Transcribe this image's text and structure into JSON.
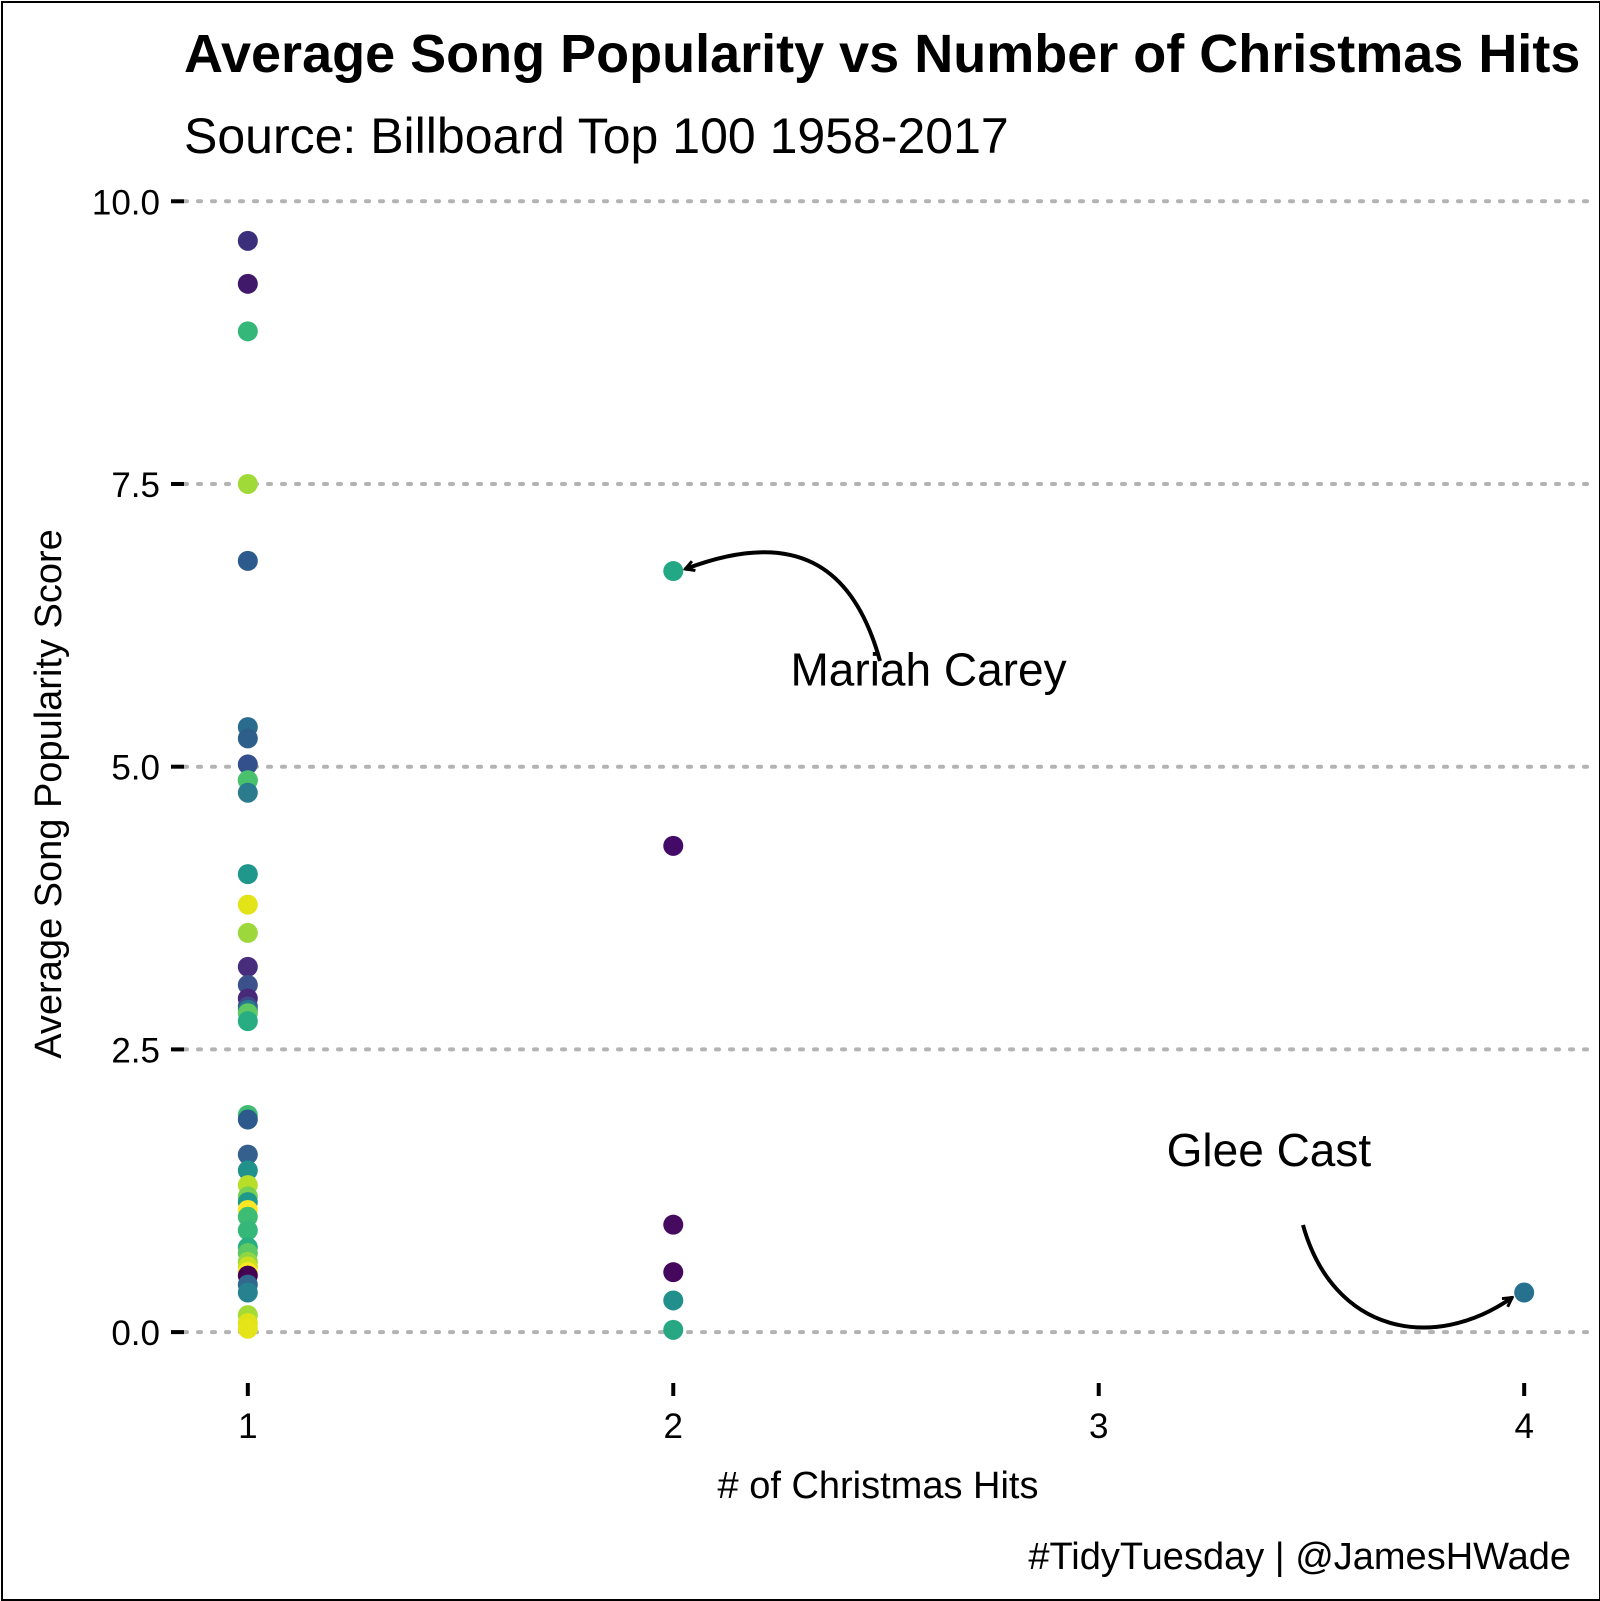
{
  "chart_data": {
    "type": "scatter",
    "title": "Average Song Popularity vs Number of Christmas Hits",
    "subtitle": "Source: Billboard Top 100 1958-2017",
    "xlabel": "# of Christmas Hits",
    "ylabel": "Average Song Popularity Score",
    "caption": "#TidyTuesday | @JamesHWade",
    "xlim": [
      0.85,
      4.15
    ],
    "ylim": [
      -0.45,
      10.25
    ],
    "x_ticks": [
      1,
      2,
      3,
      4
    ],
    "x_tick_labels": [
      "1",
      "2",
      "3",
      "4"
    ],
    "y_ticks": [
      0,
      2.5,
      5,
      7.5,
      10
    ],
    "y_tick_labels": [
      "0.0",
      "2.5",
      "5.0",
      "7.5",
      "10.0"
    ],
    "grid": "horizontal-dotted",
    "legend": "none",
    "palette": "viridis",
    "points": [
      {
        "x": 1,
        "y": 9.65,
        "color": "#3b2f7c"
      },
      {
        "x": 1,
        "y": 9.27,
        "color": "#40196b"
      },
      {
        "x": 1,
        "y": 8.85,
        "color": "#35b779"
      },
      {
        "x": 1,
        "y": 7.5,
        "color": "#a0da39"
      },
      {
        "x": 1,
        "y": 6.82,
        "color": "#2c5a8c"
      },
      {
        "x": 1,
        "y": 5.35,
        "color": "#2a6c8e"
      },
      {
        "x": 1,
        "y": 5.25,
        "color": "#2e5f8a"
      },
      {
        "x": 1,
        "y": 5.02,
        "color": "#33508c"
      },
      {
        "x": 1,
        "y": 4.88,
        "color": "#22a884"
      },
      {
        "x": 1,
        "y": 4.88,
        "color": "#4ac16d"
      },
      {
        "x": 1,
        "y": 4.77,
        "color": "#2b7b8e"
      },
      {
        "x": 1,
        "y": 4.05,
        "color": "#1f988b"
      },
      {
        "x": 1,
        "y": 3.78,
        "color": "#e3e418"
      },
      {
        "x": 1,
        "y": 3.53,
        "color": "#9cd83b"
      },
      {
        "x": 1,
        "y": 3.23,
        "color": "#472d7b"
      },
      {
        "x": 1,
        "y": 3.07,
        "color": "#3b518b"
      },
      {
        "x": 1,
        "y": 2.95,
        "color": "#482878"
      },
      {
        "x": 1,
        "y": 2.88,
        "color": "#3e4a89"
      },
      {
        "x": 1,
        "y": 2.85,
        "color": "#2a788e"
      },
      {
        "x": 1,
        "y": 2.82,
        "color": "#5ec962"
      },
      {
        "x": 1,
        "y": 2.75,
        "color": "#27ad81"
      },
      {
        "x": 1,
        "y": 1.92,
        "color": "#3fbc73"
      },
      {
        "x": 1,
        "y": 1.88,
        "color": "#2c5a8c"
      },
      {
        "x": 1,
        "y": 1.57,
        "color": "#355f8d"
      },
      {
        "x": 1,
        "y": 1.43,
        "color": "#21918c"
      },
      {
        "x": 1,
        "y": 1.3,
        "color": "#b8de29"
      },
      {
        "x": 1,
        "y": 1.2,
        "color": "#75d054"
      },
      {
        "x": 1,
        "y": 1.15,
        "color": "#1f9a8a"
      },
      {
        "x": 1,
        "y": 1.08,
        "color": "#fde725"
      },
      {
        "x": 1,
        "y": 1.02,
        "color": "#3dbc74"
      },
      {
        "x": 1,
        "y": 0.9,
        "color": "#35b779"
      },
      {
        "x": 1,
        "y": 0.75,
        "color": "#29af7f"
      },
      {
        "x": 1,
        "y": 0.7,
        "color": "#5ec962"
      },
      {
        "x": 1,
        "y": 0.62,
        "color": "#90d743"
      },
      {
        "x": 1,
        "y": 0.58,
        "color": "#c8e020"
      },
      {
        "x": 1,
        "y": 0.53,
        "color": "#fde725"
      },
      {
        "x": 1,
        "y": 0.5,
        "color": "#440154"
      },
      {
        "x": 1,
        "y": 0.42,
        "color": "#31688e"
      },
      {
        "x": 1,
        "y": 0.35,
        "color": "#26828e"
      },
      {
        "x": 1,
        "y": 0.15,
        "color": "#a5db36"
      },
      {
        "x": 1,
        "y": 0.08,
        "color": "#dde318"
      },
      {
        "x": 1,
        "y": 0.03,
        "color": "#e5e419"
      },
      {
        "x": 2,
        "y": 6.73,
        "color": "#22a884"
      },
      {
        "x": 2,
        "y": 4.3,
        "color": "#440a68"
      },
      {
        "x": 2,
        "y": 0.95,
        "color": "#460b5e"
      },
      {
        "x": 2,
        "y": 0.53,
        "color": "#46085c"
      },
      {
        "x": 2,
        "y": 0.28,
        "color": "#21908d"
      },
      {
        "x": 2,
        "y": 0.02,
        "color": "#27a882"
      },
      {
        "x": 4,
        "y": 0.35,
        "color": "#26718e"
      }
    ],
    "annotations": [
      {
        "label": "Mariah Carey",
        "x": 2.6,
        "y": 5.72
      },
      {
        "label": "Glee Cast",
        "x": 3.4,
        "y": 1.47
      }
    ]
  }
}
